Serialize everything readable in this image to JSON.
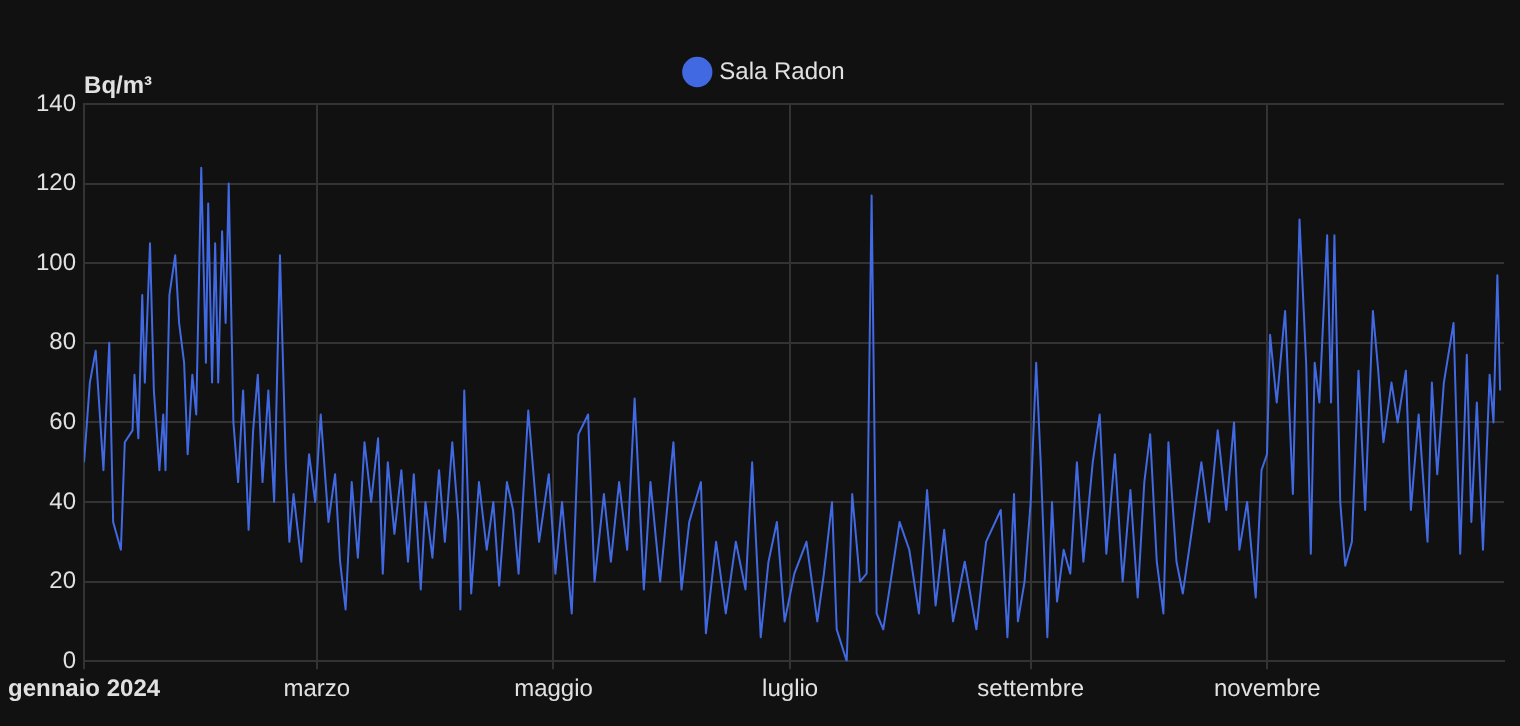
{
  "chart_data": {
    "type": "line",
    "ylabel": "Bq/m³",
    "legend": "top",
    "grid": true,
    "marker": "none",
    "line_style": "solid",
    "xlim": [
      "2024-01-01",
      "2025-01-01"
    ],
    "xticks": [
      {
        "value": "2024-01-01",
        "label": "gennaio 2024"
      },
      {
        "value": "2024-03-01",
        "label": "marzo"
      },
      {
        "value": "2024-05-01",
        "label": "maggio"
      },
      {
        "value": "2024-07-01",
        "label": "luglio"
      },
      {
        "value": "2024-09-01",
        "label": "settembre"
      },
      {
        "value": "2024-11-01",
        "label": "novembre"
      }
    ],
    "ylim": [
      0,
      140
    ],
    "yticks": [
      0,
      20,
      40,
      60,
      80,
      100,
      120,
      140
    ],
    "series": [
      {
        "name": "Sala Radon",
        "color": "#4169e1",
        "x": [
          "2024-01-01",
          "2024-01-02T12:00",
          "2024-01-04",
          "2024-01-06",
          "2024-01-07T12:00",
          "2024-01-08T12:00",
          "2024-01-10T12:00",
          "2024-01-11T12:00",
          "2024-01-13T12:00",
          "2024-01-14",
          "2024-01-15",
          "2024-01-16",
          "2024-01-16T16:00",
          "2024-01-18",
          "2024-01-19",
          "2024-01-20T10:00",
          "2024-01-21T10:00",
          "2024-01-22",
          "2024-01-23",
          "2024-01-24T12:00",
          "2024-01-25T12:00",
          "2024-01-26T19:00",
          "2024-01-27T17:00",
          "2024-01-28T22:00",
          "2024-01-29T22:00",
          "2024-01-31T05:00",
          "2024-02-01T10:00",
          "2024-02-02",
          "2024-02-03",
          "2024-02-03T19:00",
          "2024-02-04T14:00",
          "2024-02-05T14:00",
          "2024-02-06T12:00",
          "2024-02-07T07:00",
          "2024-02-08T12:00",
          "2024-02-09T17:00",
          "2024-02-11",
          "2024-02-12T10:00",
          "2024-02-13T14:00",
          "2024-02-14T19:00",
          "2024-02-16",
          "2024-02-17T12:00",
          "2024-02-19",
          "2024-02-20T12:00",
          "2024-02-22",
          "2024-02-22T22:00",
          "2024-02-24",
          "2024-02-26",
          "2024-02-28",
          "2024-02-29T14:00",
          "2024-03-02",
          "2024-03-04",
          "2024-03-05T17:00",
          "2024-03-07",
          "2024-03-08T10:00",
          "2024-03-10",
          "2024-03-11T14:00",
          "2024-03-13T07:00",
          "2024-03-15",
          "2024-03-16T19:00",
          "2024-03-18",
          "2024-03-19T07:00",
          "2024-03-21",
          "2024-03-22T19:00",
          "2024-03-24T12:00",
          "2024-03-26",
          "2024-03-27T19:00",
          "2024-03-29",
          "2024-03-30T19:00",
          "2024-04-01T12:00",
          "2024-04-03",
          "2024-04-04T22:00",
          "2024-04-06T12:00",
          "2024-04-07",
          "2024-04-08",
          "2024-04-09T19:00",
          "2024-04-11T19:00",
          "2024-04-13T19:00",
          "2024-04-15T12:00",
          "2024-04-17",
          "2024-04-19",
          "2024-04-20T14:00",
          "2024-04-22",
          "2024-04-24T12:00",
          "2024-04-27T07:00",
          "2024-04-29T19:00",
          "2024-05-01T12:00",
          "2024-05-03T05:00",
          "2024-05-05T17:00",
          "2024-05-07T10:00",
          "2024-05-09T22:00",
          "2024-05-11T14:00",
          "2024-05-14",
          "2024-05-15T19:00",
          "2024-05-17T22:00",
          "2024-05-20",
          "2024-05-21T22:00",
          "2024-05-24T07:00",
          "2024-05-26",
          "2024-05-28T12:00",
          "2024-05-31T22:00",
          "2024-06-03",
          "2024-06-05",
          "2024-06-08",
          "2024-06-09T07:00",
          "2024-06-11T22:00",
          "2024-06-14T10:00",
          "2024-06-17",
          "2024-06-19T12:00",
          "2024-06-21T05:00",
          "2024-06-23T10:00",
          "2024-06-25T10:00",
          "2024-06-27T14:00",
          "2024-06-29T14:00",
          "2024-07-02T02:00",
          "2024-07-05T05:00",
          "2024-07-08",
          "2024-07-09T17:00",
          "2024-07-11T19:00",
          "2024-07-13",
          "2024-07-15T14:00",
          "2024-07-17",
          "2024-07-19",
          "2024-07-20T17:00",
          "2024-07-22",
          "2024-07-23T07:00",
          "2024-07-25",
          "2024-07-26T14:00",
          "2024-07-29T05:00",
          "2024-07-31T17:00",
          "2024-08-03T05:00",
          "2024-08-05T07:00",
          "2024-08-07T12:00",
          "2024-08-09T17:00",
          "2024-08-12",
          "2024-08-15",
          "2024-08-18",
          "2024-08-20T12:00",
          "2024-08-24T07:00",
          "2024-08-26",
          "2024-08-27T17:00",
          "2024-08-28T17:00",
          "2024-08-30T10:00",
          "2024-09-01",
          "2024-09-02T10:00",
          "2024-09-03T14:00",
          "2024-09-05T07:00",
          "2024-09-06T12:00",
          "2024-09-07T19:00",
          "2024-09-09T12:00",
          "2024-09-11T05:00",
          "2024-09-12T22:00",
          "2024-09-14T14:00",
          "2024-09-17",
          "2024-09-18T19:00",
          "2024-09-20T12:00",
          "2024-09-22T17:00",
          "2024-09-24T17:00",
          "2024-09-26T17:00",
          "2024-09-28T14:00",
          "2024-09-30T07:00",
          "2024-10-01T19:00",
          "2024-10-03T12:00",
          "2024-10-05T05:00",
          "2024-10-06T12:00",
          "2024-10-08T14:00",
          "2024-10-10T05:00",
          "2024-10-12T10:00",
          "2024-10-15",
          "2024-10-17",
          "2024-10-19T05:00",
          "2024-10-21T10:00",
          "2024-10-23T10:00",
          "2024-10-24T19:00",
          "2024-10-26T19:00",
          "2024-10-29",
          "2024-10-30T12:00",
          "2024-10-31T22:00",
          "2024-11-01T17:00",
          "2024-11-03T10:00",
          "2024-11-05T14:00",
          "2024-11-07T14:00",
          "2024-11-09T07:00",
          "2024-11-11",
          "2024-11-12T05:00",
          "2024-11-13T05:00",
          "2024-11-14T10:00",
          "2024-11-16T10:00",
          "2024-11-17T10:00",
          "2024-11-18T07:00",
          "2024-11-19T19:00",
          "2024-11-21T02:00",
          "2024-11-22T19:00",
          "2024-11-24T12:00",
          "2024-11-26T05:00",
          "2024-11-28T05:00",
          "2024-11-29T14:00",
          "2024-11-30T22:00",
          "2024-12-03",
          "2024-12-04T14:00",
          "2024-12-06T17:00",
          "2024-12-08",
          "2024-12-10",
          "2024-12-12T07:00",
          "2024-12-13T10:00",
          "2024-12-14T19:00",
          "2024-12-16T12:00",
          "2024-12-19",
          "2024-12-20T17:00",
          "2024-12-22T10:00",
          "2024-12-23T14:00",
          "2024-12-25",
          "2024-12-26T14:00",
          "2024-12-28T07:00",
          "2024-12-29T07:00",
          "2024-12-30T07:00",
          "2024-12-31"
        ],
        "values": [
          50,
          70,
          78,
          48,
          80,
          35,
          28,
          55,
          58,
          72,
          56,
          92,
          70,
          105,
          68,
          48,
          62,
          48,
          92,
          102,
          85,
          75,
          52,
          72,
          62,
          124,
          75,
          115,
          70,
          105,
          70,
          108,
          85,
          120,
          60,
          45,
          68,
          33,
          58,
          72,
          45,
          68,
          40,
          102,
          50,
          30,
          42,
          25,
          52,
          40,
          62,
          35,
          47,
          25,
          13,
          45,
          26,
          55,
          40,
          56,
          22,
          50,
          32,
          48,
          25,
          47,
          18,
          40,
          26,
          48,
          30,
          55,
          35,
          13,
          68,
          17,
          45,
          28,
          40,
          19,
          45,
          38,
          22,
          63,
          30,
          47,
          22,
          40,
          12,
          57,
          62,
          20,
          42,
          25,
          45,
          28,
          66,
          18,
          45,
          20,
          55,
          18,
          35,
          45,
          7,
          30,
          12,
          30,
          18,
          50,
          6,
          25,
          35,
          10,
          22,
          30,
          10,
          22,
          40,
          8,
          0,
          42,
          20,
          22,
          117,
          12,
          8,
          18,
          35,
          28,
          12,
          43,
          14,
          33,
          10,
          25,
          8,
          30,
          38,
          6,
          42,
          10,
          20,
          40,
          75,
          50,
          6,
          40,
          15,
          28,
          22,
          50,
          25,
          50,
          62,
          27,
          52,
          20,
          43,
          16,
          45,
          57,
          25,
          12,
          55,
          25,
          17,
          32,
          50,
          35,
          58,
          38,
          60,
          28,
          40,
          16,
          48,
          52,
          82,
          65,
          88,
          42,
          111,
          75,
          27,
          75,
          65,
          107,
          65,
          107,
          40,
          24,
          30,
          73,
          38,
          88,
          73,
          55,
          70,
          60,
          73,
          38,
          62,
          30,
          70,
          47,
          70,
          85,
          27,
          77,
          35,
          65,
          28,
          72,
          60,
          97,
          68
        ]
      }
    ]
  }
}
